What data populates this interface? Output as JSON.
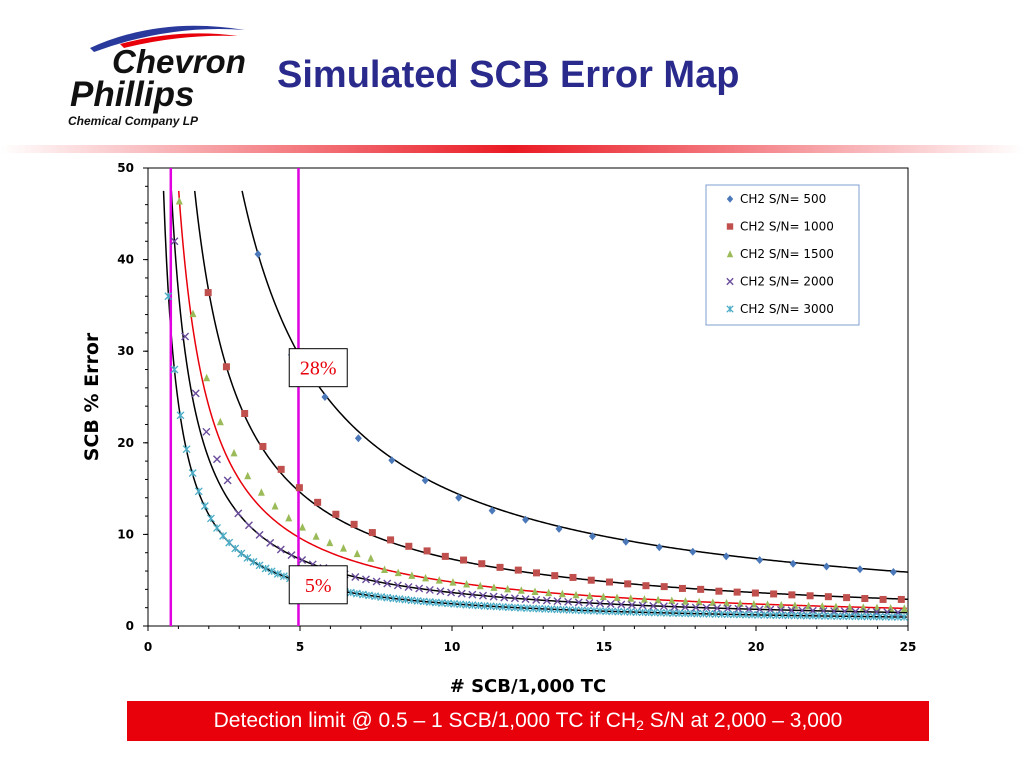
{
  "header": {
    "logo_line1": "Chevron",
    "logo_line2": "Phillips",
    "logo_line3": "Chemical Company LP",
    "title": "Simulated SCB Error Map"
  },
  "footer": {
    "text_before": "Detection limit @ 0.5 – 1 SCB/1,000 TC if CH",
    "subscript": "2",
    "text_after": " S/N at 2,000 – 3,000"
  },
  "colors": {
    "title": "#2a2a8c",
    "footer_bg": "#e8000b",
    "logo_blue": "#2a3a9c",
    "logo_red": "#e8000b",
    "marker_line": "#e000e0"
  },
  "chart_data": {
    "type": "scatter",
    "xlabel": "# SCB/1,000 TC",
    "ylabel": "SCB % Error",
    "xlim": [
      0,
      25
    ],
    "ylim": [
      0,
      50
    ],
    "xticks": [
      "0",
      "5",
      "10",
      "15",
      "20",
      "25"
    ],
    "yticks": [
      "0",
      "10",
      "20",
      "30",
      "40",
      "50"
    ],
    "legend_position": "top-right",
    "series": [
      {
        "name": "CH2 S/N= 500",
        "marker": "diamond",
        "color": "#4a78b8",
        "fit_color": "#000000",
        "k": 147,
        "x_start": 3.62,
        "x_step": 1.1,
        "y_points": [
          40.6,
          29.6,
          25.0,
          20.5,
          18.1,
          15.9,
          14.0,
          12.6,
          11.6,
          10.6,
          9.8,
          9.2,
          8.6,
          8.1,
          7.6,
          7.2,
          6.8,
          6.5,
          6.2,
          5.9
        ]
      },
      {
        "name": "CH2 S/N= 1000",
        "marker": "square",
        "color": "#c0504d",
        "fit_color": "#000000",
        "k": 73,
        "x_start": 1.98,
        "x_step": 0.6,
        "y_points": [
          36.4,
          28.3,
          23.2,
          19.6,
          17.1,
          15.1,
          13.5,
          12.2,
          11.1,
          10.2,
          9.4,
          8.7,
          8.2,
          7.6,
          7.2,
          6.8,
          6.4,
          6.1,
          5.8,
          5.5,
          5.3,
          5.0,
          4.8,
          4.6,
          4.4,
          4.3,
          4.1,
          4.0,
          3.8,
          3.7,
          3.6,
          3.5,
          3.4,
          3.3,
          3.2,
          3.1,
          3.0,
          2.9,
          2.9
        ]
      },
      {
        "name": "CH2 S/N= 1500",
        "marker": "triangle",
        "color": "#9bbb59",
        "fit_color": "#e8000b",
        "k": 48,
        "x_start": 1.03,
        "x_step": 0.45,
        "y_points": [
          46.4,
          34.1,
          27.1,
          22.3,
          18.9,
          16.4,
          14.6,
          13.1,
          11.8,
          10.8,
          9.8,
          9.1,
          8.5,
          7.9,
          7.4
        ]
      },
      {
        "name": "CH2 S/N= 2000",
        "marker": "x",
        "color": "#6a4c9c",
        "fit_color": "#000000",
        "k": 36.5,
        "x_start": 0.87,
        "x_step": 0.35,
        "y_points": [
          42.0,
          31.6,
          25.4,
          21.2,
          18.2,
          15.9
        ]
      },
      {
        "name": "CH2 S/N= 3000",
        "marker": "star",
        "color": "#4bacc6",
        "fit_color": "#000000",
        "k": 24.3,
        "x_start": 0.67,
        "x_step": 0.2,
        "y_points": [
          36.0,
          28.0,
          23.0,
          19.3,
          16.7,
          14.7,
          13.1
        ]
      }
    ],
    "vertical_lines": [
      0.75,
      4.95
    ],
    "annotations": [
      {
        "text": "28%",
        "x": 5.6,
        "y": 28.2
      },
      {
        "text": "5%",
        "x": 5.6,
        "y": 4.5
      }
    ]
  }
}
